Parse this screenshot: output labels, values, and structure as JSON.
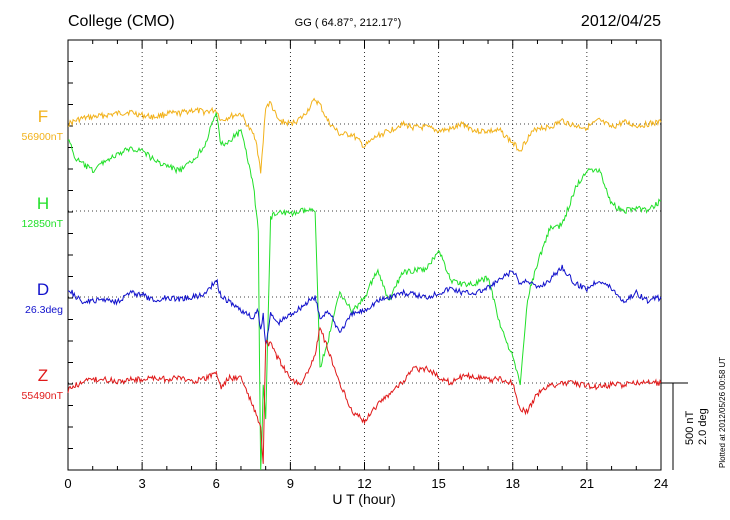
{
  "header": {
    "station": "College (CMO)",
    "coords": "GG ( 64.87°, 212.17°)",
    "date": "2012/04/25"
  },
  "footer": {
    "plotted": "Plotted at 2012/05/26 00:58 UT",
    "scale_nt": "500 nT",
    "scale_deg": "2.0 deg"
  },
  "chart_data": {
    "type": "line",
    "xlabel": "U T (hour)",
    "xlim": [
      0,
      24
    ],
    "xticks": [
      "0",
      "3",
      "6",
      "9",
      "12",
      "15",
      "18",
      "21",
      "24"
    ],
    "scale": {
      "label_nt": "500 nT",
      "label_deg": "2.0 deg",
      "nt_per_span": 500,
      "deg_per_span": 2.0
    },
    "series": [
      {
        "name": "F",
        "baseline": "56900nT",
        "color": "#f2b21b",
        "unit": "nT",
        "x": [
          0,
          0.5,
          1,
          1.5,
          2,
          2.5,
          3,
          3.5,
          4,
          4.5,
          5,
          5.5,
          6,
          6.2,
          6.5,
          7,
          7.3,
          7.6,
          7.8,
          7.9,
          8.0,
          8.2,
          8.5,
          9,
          9.5,
          10,
          10.2,
          10.5,
          11,
          11.5,
          12,
          12.5,
          13,
          13.5,
          14,
          14.5,
          15,
          15.5,
          16,
          16.5,
          17,
          17.5,
          18,
          18.3,
          18.6,
          19,
          19.5,
          20,
          20.5,
          21,
          21.5,
          22,
          22.5,
          23,
          23.5,
          24
        ],
        "y": [
          0,
          30,
          40,
          50,
          60,
          70,
          50,
          40,
          60,
          60,
          80,
          70,
          80,
          20,
          40,
          60,
          -20,
          -80,
          -280,
          -100,
          100,
          120,
          20,
          0,
          40,
          140,
          110,
          20,
          -60,
          -60,
          -130,
          -70,
          -40,
          0,
          -20,
          -20,
          -40,
          -30,
          0,
          -40,
          -40,
          -40,
          -110,
          -150,
          -80,
          -20,
          -20,
          20,
          -10,
          -20,
          20,
          -20,
          10,
          -10,
          0,
          10
        ]
      },
      {
        "name": "H",
        "baseline": "12850nT",
        "color": "#22e02a",
        "unit": "nT",
        "x": [
          0,
          0.3,
          1,
          1.5,
          2,
          2.5,
          3,
          3.5,
          4,
          4.5,
          5,
          5.5,
          6,
          6.2,
          6.5,
          7,
          7.5,
          7.7,
          7.8,
          7.9,
          8.0,
          8.2,
          8.5,
          9,
          9.5,
          10,
          10.2,
          10.5,
          11,
          11.5,
          12,
          12.5,
          13,
          13.5,
          14,
          14.5,
          15,
          15.5,
          16,
          16.5,
          17,
          17.5,
          18,
          18.3,
          18.6,
          19,
          19.5,
          20,
          20.5,
          21,
          21.5,
          22,
          22.5,
          23,
          23.5,
          24
        ],
        "y": [
          420,
          300,
          230,
          290,
          320,
          360,
          350,
          290,
          260,
          230,
          280,
          370,
          560,
          380,
          400,
          460,
          160,
          -120,
          -1600,
          -1000,
          -1200,
          -40,
          0,
          -20,
          0,
          0,
          -900,
          -760,
          -460,
          -580,
          -500,
          -340,
          -520,
          -360,
          -340,
          -340,
          -220,
          -400,
          -420,
          -420,
          -380,
          -660,
          -840,
          -1000,
          -500,
          -300,
          -100,
          -80,
          120,
          240,
          240,
          40,
          0,
          20,
          0,
          60
        ]
      },
      {
        "name": "D",
        "baseline": "26.3deg",
        "color": "#1111cc",
        "unit": "deg",
        "x": [
          0,
          0.5,
          1,
          1.5,
          2,
          2.5,
          3,
          3.5,
          4,
          4.5,
          5,
          5.5,
          6,
          6.2,
          6.5,
          7,
          7.5,
          7.7,
          7.8,
          7.9,
          8.0,
          8.2,
          8.5,
          9,
          9.5,
          10,
          10.2,
          10.5,
          11,
          11.5,
          12,
          12.5,
          13,
          13.5,
          14,
          14.5,
          15,
          15.5,
          16,
          16.5,
          17,
          17.5,
          18,
          18.3,
          18.6,
          19,
          19.5,
          20,
          20.5,
          21,
          21.5,
          22,
          22.5,
          23,
          23.5,
          24
        ],
        "y": [
          0.2,
          -0.1,
          -0.1,
          -0.05,
          -0.1,
          0.1,
          0.05,
          -0.1,
          0.0,
          -0.05,
          0.0,
          0.05,
          0.4,
          0.0,
          -0.1,
          -0.3,
          -0.5,
          -0.3,
          -0.8,
          -0.4,
          -1.1,
          -0.4,
          -0.6,
          -0.4,
          -0.2,
          0.0,
          -0.5,
          -0.3,
          -0.8,
          -0.4,
          -0.3,
          -0.1,
          0.0,
          0.1,
          0.05,
          0.0,
          0.1,
          0.2,
          0.1,
          0.1,
          0.2,
          0.4,
          0.6,
          0.3,
          0.4,
          0.2,
          0.4,
          0.7,
          0.3,
          0.2,
          0.4,
          0.2,
          -0.1,
          0.1,
          -0.1,
          0.0
        ]
      },
      {
        "name": "Z",
        "baseline": "55490nT",
        "color": "#e01a1a",
        "unit": "nT",
        "x": [
          0,
          0.5,
          1,
          1.5,
          2,
          2.5,
          3,
          3.5,
          4,
          4.5,
          5,
          5.5,
          6,
          6.2,
          6.5,
          7,
          7.5,
          7.7,
          7.8,
          7.9,
          8.0,
          8.2,
          8.5,
          9,
          9.5,
          10,
          10.2,
          10.5,
          11,
          11.5,
          12,
          12.5,
          13,
          13.5,
          14,
          14.5,
          15,
          15.5,
          16,
          16.5,
          17,
          17.5,
          18,
          18.3,
          18.6,
          19,
          19.5,
          20,
          20.5,
          21,
          21.5,
          22,
          22.5,
          23,
          23.5,
          24
        ],
        "y": [
          -40,
          0,
          20,
          20,
          10,
          20,
          20,
          30,
          20,
          30,
          10,
          20,
          60,
          -30,
          30,
          30,
          -140,
          -220,
          -260,
          -470,
          240,
          220,
          140,
          20,
          0,
          160,
          320,
          200,
          0,
          -160,
          -220,
          -130,
          -60,
          0,
          80,
          80,
          40,
          0,
          40,
          40,
          20,
          20,
          0,
          -160,
          -160,
          -60,
          -20,
          0,
          0,
          -20,
          -20,
          -10,
          -10,
          0,
          0,
          0
        ]
      }
    ],
    "grid": true,
    "legend": "left"
  }
}
